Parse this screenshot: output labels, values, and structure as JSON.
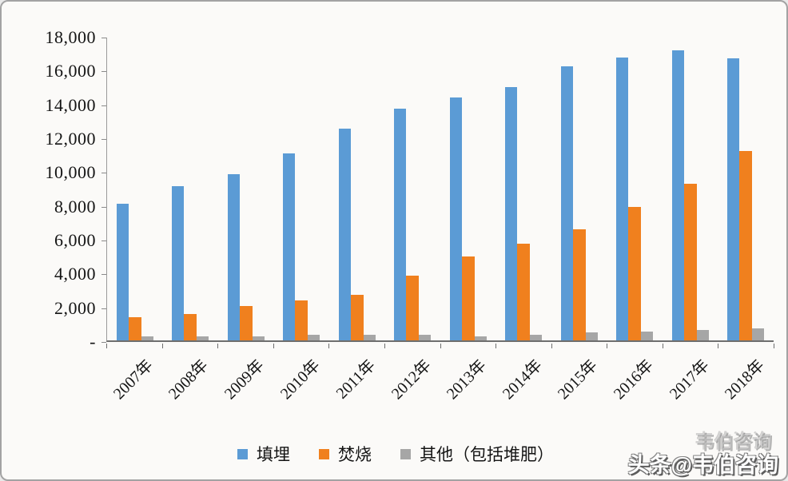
{
  "chart_data": {
    "type": "bar",
    "title": "",
    "categories": [
      "2007年",
      "2008年",
      "2009年",
      "2010年",
      "2011年",
      "2012年",
      "2013年",
      "2014年",
      "2015年",
      "2016年",
      "2017年",
      "2018年"
    ],
    "series": [
      {
        "name": "填埋",
        "color": "#5b9bd5",
        "values": [
          8100,
          9100,
          9850,
          11050,
          12500,
          13700,
          14350,
          15000,
          16200,
          16750,
          17150,
          16700
        ]
      },
      {
        "name": "焚烧",
        "color": "#f0801e",
        "values": [
          1350,
          1550,
          2050,
          2350,
          2700,
          3850,
          4950,
          5700,
          6550,
          7900,
          9250,
          11200
        ]
      },
      {
        "name": "其他（包括堆肥）",
        "color": "#a6a6a6",
        "values": [
          260,
          260,
          260,
          350,
          340,
          340,
          240,
          340,
          470,
          530,
          610,
          730
        ]
      }
    ],
    "y_axis": {
      "min": 0,
      "max": 18000,
      "step": 2000,
      "tick_labels": [
        "18,000",
        "16,000",
        "14,000",
        "12,000",
        "10,000",
        "8,000",
        "6,000",
        "4,000",
        "2,000",
        "-"
      ]
    },
    "legend_position": "bottom",
    "grid": false
  },
  "legend": {
    "items": [
      {
        "label": "填埋",
        "color": "#5b9bd5"
      },
      {
        "label": "焚烧",
        "color": "#f0801e"
      },
      {
        "label": "其他（包括堆肥）",
        "color": "#a6a6a6"
      }
    ]
  },
  "watermark": {
    "main": "头条@韦伯咨询",
    "ghost": "韦伯咨询"
  },
  "colors": {
    "background": "#fbfaf8",
    "border": "#a3a3a3",
    "axis": "#6e6e6e",
    "text": "#141414"
  }
}
